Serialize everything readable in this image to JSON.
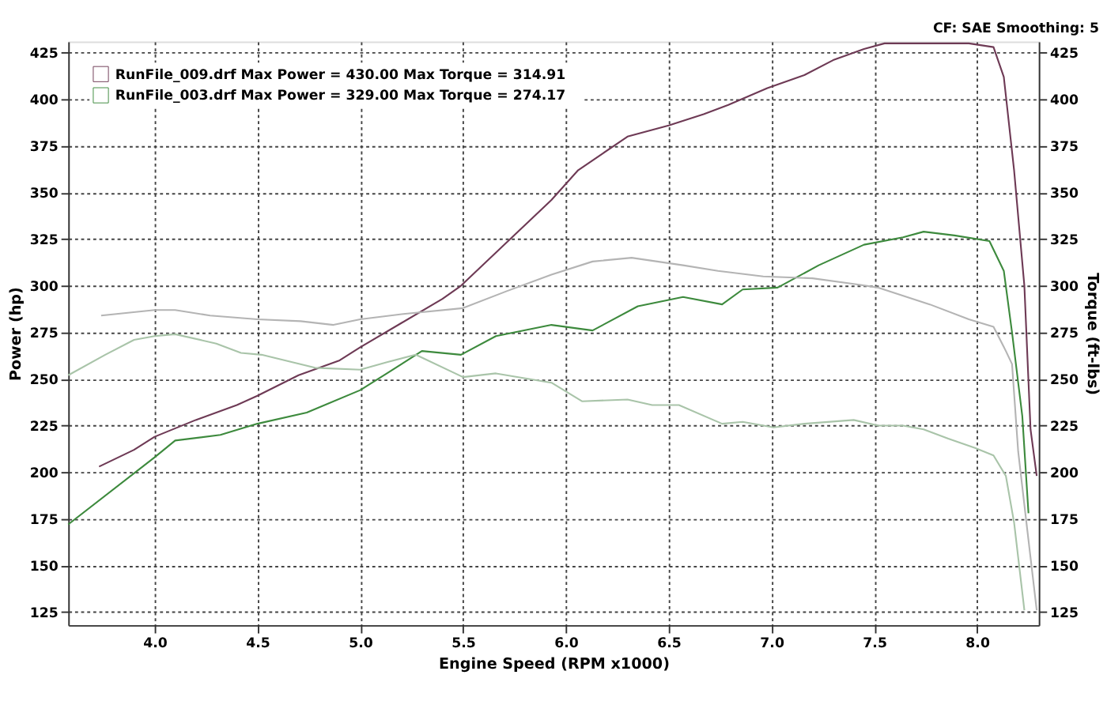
{
  "chart_data": {
    "type": "line",
    "xlabel": "Engine Speed (RPM x1000)",
    "ylabel": "Power (hp)",
    "y2label": "Torque (ft-lbs)",
    "annotations": [
      "CF: SAE  Smoothing: 5"
    ],
    "xlim": [
      3.58,
      8.3
    ],
    "xticks": [
      {
        "value": 4,
        "label": "4.0"
      },
      {
        "value": 4.5,
        "label": "4.5"
      },
      {
        "value": 5,
        "label": "5.0"
      },
      {
        "value": 5.5,
        "label": "5.5"
      },
      {
        "value": 6,
        "label": "6.0"
      },
      {
        "value": 6.5,
        "label": "6.5"
      },
      {
        "value": 7,
        "label": "7.0"
      },
      {
        "value": 7.5,
        "label": "7.5"
      },
      {
        "value": 8,
        "label": "8.0"
      }
    ],
    "ylim": [
      118,
      431
    ],
    "yticks": [
      125,
      150,
      175,
      200,
      225,
      250,
      275,
      300,
      325,
      350,
      375,
      400,
      425
    ],
    "y2lim": [
      118,
      431
    ],
    "y2ticks": [
      125,
      150,
      175,
      200,
      225,
      250,
      275,
      300,
      325,
      350,
      375,
      400,
      425
    ],
    "grid": true,
    "legend": "top left",
    "line_style": "solid",
    "marker": "none",
    "series": [
      {
        "name": "RunFile_009.drf Max Power = 430.00    Max Torque = 314.91",
        "color": "#6e3a55",
        "x": [
          3.73,
          3.9,
          4.0,
          4.2,
          4.4,
          4.5,
          4.7,
          4.9,
          5.0,
          5.2,
          5.4,
          5.49,
          5.71,
          5.93,
          6.06,
          6.18,
          6.3,
          6.5,
          6.67,
          6.79,
          6.98,
          7.16,
          7.3,
          7.45,
          7.55,
          7.96,
          8.08,
          8.13,
          8.18,
          8.23,
          8.26,
          8.29
        ],
        "values": [
          203,
          212,
          219,
          228,
          236,
          241,
          252,
          260,
          267,
          280,
          293,
          300,
          323,
          346,
          362,
          371,
          380,
          386,
          392,
          397,
          406,
          413,
          421,
          427,
          430,
          430,
          428,
          412,
          362,
          300,
          223,
          198
        ]
      },
      {
        "name": "RunFile_003.drf Max Power = 329.00    Max Torque = 274.17",
        "color": "#3d8a3d",
        "x": [
          3.58,
          4.0,
          4.1,
          4.32,
          4.5,
          4.74,
          5.0,
          5.13,
          5.3,
          5.49,
          5.66,
          5.93,
          6.13,
          6.35,
          6.57,
          6.76,
          6.86,
          7.03,
          7.23,
          7.45,
          7.64,
          7.74,
          7.89,
          8.06,
          8.13,
          8.17,
          8.22,
          8.25
        ],
        "values": [
          172,
          208,
          217,
          220,
          226,
          232,
          244,
          253,
          265,
          263,
          273,
          279,
          276,
          289,
          294,
          290,
          298,
          299,
          311,
          322,
          326,
          329,
          327,
          324,
          308,
          275,
          230,
          178
        ]
      },
      {
        "axis": "y2",
        "color": "#b4b4b4",
        "x": [
          3.74,
          4.0,
          4.1,
          4.27,
          4.5,
          4.71,
          4.87,
          5.0,
          5.22,
          5.5,
          5.71,
          5.93,
          6.13,
          6.32,
          6.57,
          6.74,
          6.96,
          7.2,
          7.4,
          7.52,
          7.77,
          7.96,
          8.08,
          8.14,
          8.17,
          8.2,
          8.24,
          8.29
        ],
        "values": [
          284,
          287,
          287,
          284,
          282,
          281,
          279,
          282,
          285,
          288,
          297,
          306,
          313,
          315,
          311,
          308,
          305,
          304,
          301,
          299,
          290,
          282,
          278,
          265,
          258,
          211,
          173,
          126
        ]
      },
      {
        "axis": "y2",
        "color": "#a9c4a9",
        "x": [
          3.58,
          3.76,
          3.9,
          4.0,
          4.1,
          4.3,
          4.42,
          4.52,
          4.78,
          5.0,
          5.13,
          5.27,
          5.5,
          5.66,
          5.93,
          6.08,
          6.3,
          6.42,
          6.55,
          6.76,
          6.86,
          7.01,
          7.16,
          7.4,
          7.52,
          7.64,
          7.74,
          7.86,
          7.99,
          8.08,
          8.14,
          8.18,
          8.23
        ],
        "values": [
          252,
          263,
          271,
          273,
          274,
          269,
          264,
          263,
          256,
          255,
          259,
          263,
          251,
          253,
          248,
          238,
          239,
          236,
          236,
          226,
          227,
          224,
          226,
          228,
          225,
          225,
          223,
          218,
          213,
          209,
          198,
          173,
          126
        ]
      }
    ]
  }
}
